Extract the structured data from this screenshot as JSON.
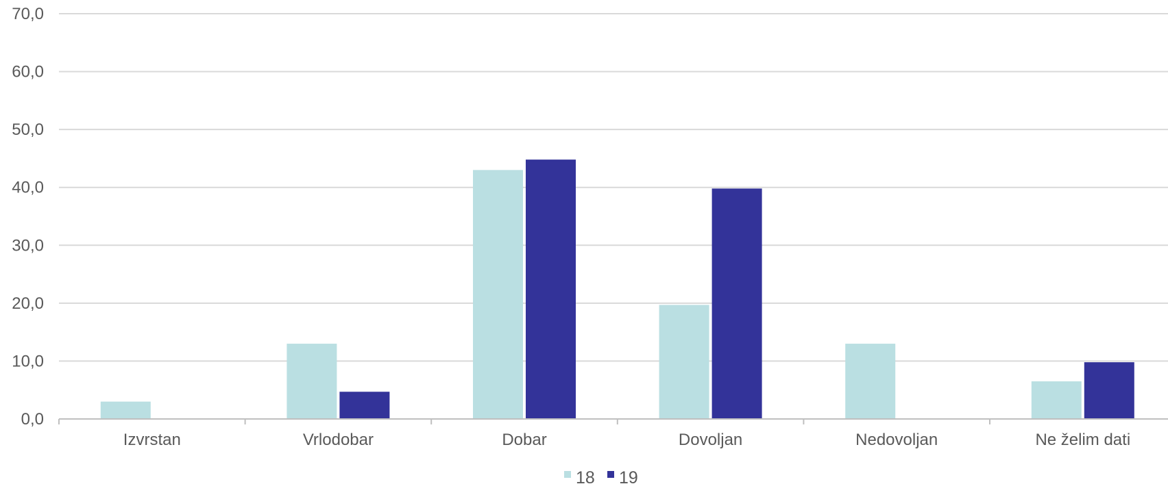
{
  "chart_data": {
    "type": "bar",
    "categories": [
      "Izvrstan",
      "Vrlodobar",
      "Dobar",
      "Dovoljan",
      "Nedovoljan",
      "Ne želim dati"
    ],
    "series": [
      {
        "name": "18",
        "color": "#badfe2",
        "values": [
          3.0,
          13.0,
          43.0,
          19.7,
          13.0,
          6.5
        ]
      },
      {
        "name": "19",
        "color": "#333399",
        "values": [
          0.0,
          4.7,
          44.8,
          39.8,
          0.0,
          9.8
        ]
      }
    ],
    "yticks": [
      "0,0",
      "10,0",
      "20,0",
      "30,0",
      "40,0",
      "50,0",
      "60,0",
      "70,0"
    ],
    "ylim": [
      0,
      70
    ],
    "grid": true,
    "legend_position": "bottom",
    "title": "",
    "xlabel": "",
    "ylabel": ""
  }
}
